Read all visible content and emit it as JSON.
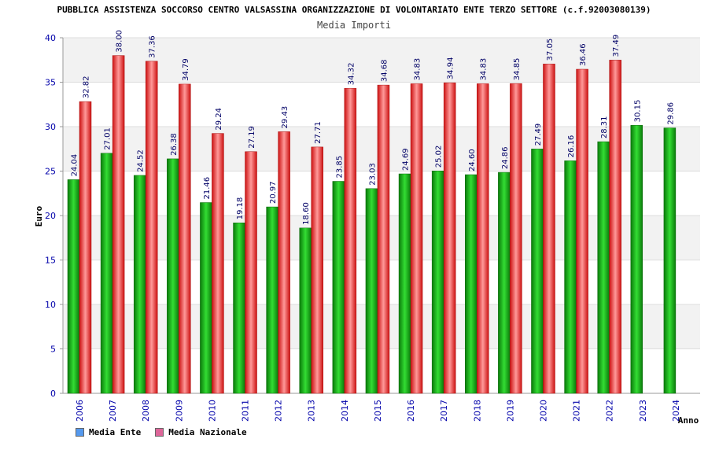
{
  "chart_data": {
    "type": "bar",
    "title": "PUBBLICA ASSISTENZA SOCCORSO CENTRO VALSASSINA ORGANIZZAZIONE DI VOLONTARIATO ENTE TERZO SETTORE (c.f.92003080139)",
    "subtitle": "Media Importi",
    "xlabel": "Anno",
    "ylabel": "Euro",
    "ylim": [
      0,
      40
    ],
    "yticks": [
      0,
      5,
      10,
      15,
      20,
      25,
      30,
      35,
      40
    ],
    "categories": [
      "2006",
      "2007",
      "2008",
      "2009",
      "2010",
      "2011",
      "2012",
      "2013",
      "2014",
      "2015",
      "2016",
      "2017",
      "2018",
      "2019",
      "2020",
      "2021",
      "2022",
      "2023",
      "2024"
    ],
    "series": [
      {
        "name": "Media Ente",
        "color": "#22aa22",
        "values": [
          24.04,
          27.01,
          24.52,
          26.38,
          21.46,
          19.18,
          20.97,
          18.6,
          23.85,
          23.03,
          24.69,
          25.02,
          24.6,
          24.86,
          27.49,
          26.16,
          28.31,
          30.15,
          29.86
        ],
        "labels": [
          "24.04",
          "27.01",
          "24.52",
          "26.38",
          "21.46",
          "19.18",
          "20.97",
          "18.60",
          "23.85",
          "23.03",
          "24.69",
          "25.02",
          "24.60",
          "24.86",
          "27.49",
          "26.16",
          "28.31",
          "30.15",
          "29.86"
        ]
      },
      {
        "name": "Media Nazionale",
        "color": "#ee2222",
        "values": [
          32.82,
          38.0,
          37.36,
          34.79,
          29.24,
          27.19,
          29.43,
          27.71,
          34.32,
          34.68,
          34.83,
          34.94,
          34.83,
          34.85,
          37.05,
          36.46,
          37.49,
          null,
          null
        ],
        "labels": [
          "32.82",
          "38.00",
          "37.36",
          "34.79",
          "29.24",
          "27.19",
          "29.43",
          "27.71",
          "34.32",
          "34.68",
          "34.83",
          "34.94",
          "34.83",
          "34.85",
          "37.05",
          "36.46",
          "37.49",
          null,
          null
        ]
      }
    ],
    "legend": [
      {
        "label": "Media Ente",
        "color": "#5599ee"
      },
      {
        "label": "Media Nazionale",
        "color": "#dd6699"
      }
    ]
  }
}
